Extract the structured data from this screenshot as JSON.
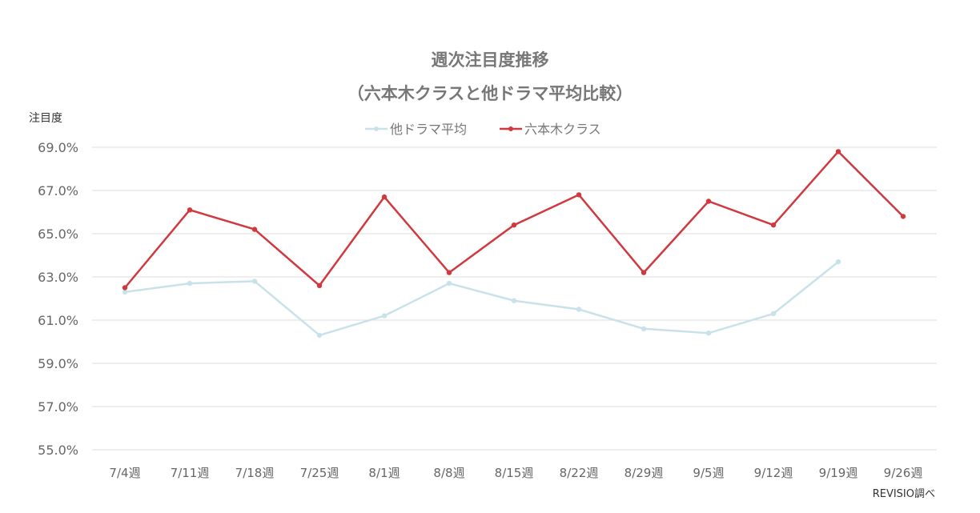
{
  "chart_data": {
    "type": "line",
    "title_line1": "週次注目度推移",
    "title_line2": "（六本木クラスと他ドラマ平均比較）",
    "ylabel": "注目度",
    "source": "REVISIO調べ",
    "ylim": [
      55.0,
      69.0
    ],
    "yticks": [
      "69.0%",
      "67.0%",
      "65.0%",
      "63.0%",
      "61.0%",
      "59.0%",
      "57.0%",
      "55.0%"
    ],
    "ytick_values": [
      69,
      67,
      65,
      63,
      61,
      59,
      57,
      55
    ],
    "categories": [
      "7/4週",
      "7/11週",
      "7/18週",
      "7/25週",
      "8/1週",
      "8/8週",
      "8/15週",
      "8/22週",
      "8/29週",
      "9/5週",
      "9/12週",
      "9/19週",
      "9/26週"
    ],
    "legend_position": "top-center",
    "grid": true,
    "series": [
      {
        "name": "他ドラマ平均",
        "color": "#c9e2ea",
        "values": [
          62.3,
          62.7,
          62.8,
          60.3,
          61.2,
          62.7,
          61.9,
          61.5,
          60.6,
          60.4,
          61.3,
          63.7,
          null
        ]
      },
      {
        "name": "六本木クラス",
        "color": "#d0393e",
        "values": [
          62.5,
          66.1,
          65.2,
          62.6,
          66.7,
          63.2,
          65.4,
          66.8,
          63.2,
          66.5,
          65.4,
          68.8,
          65.8
        ]
      }
    ]
  }
}
